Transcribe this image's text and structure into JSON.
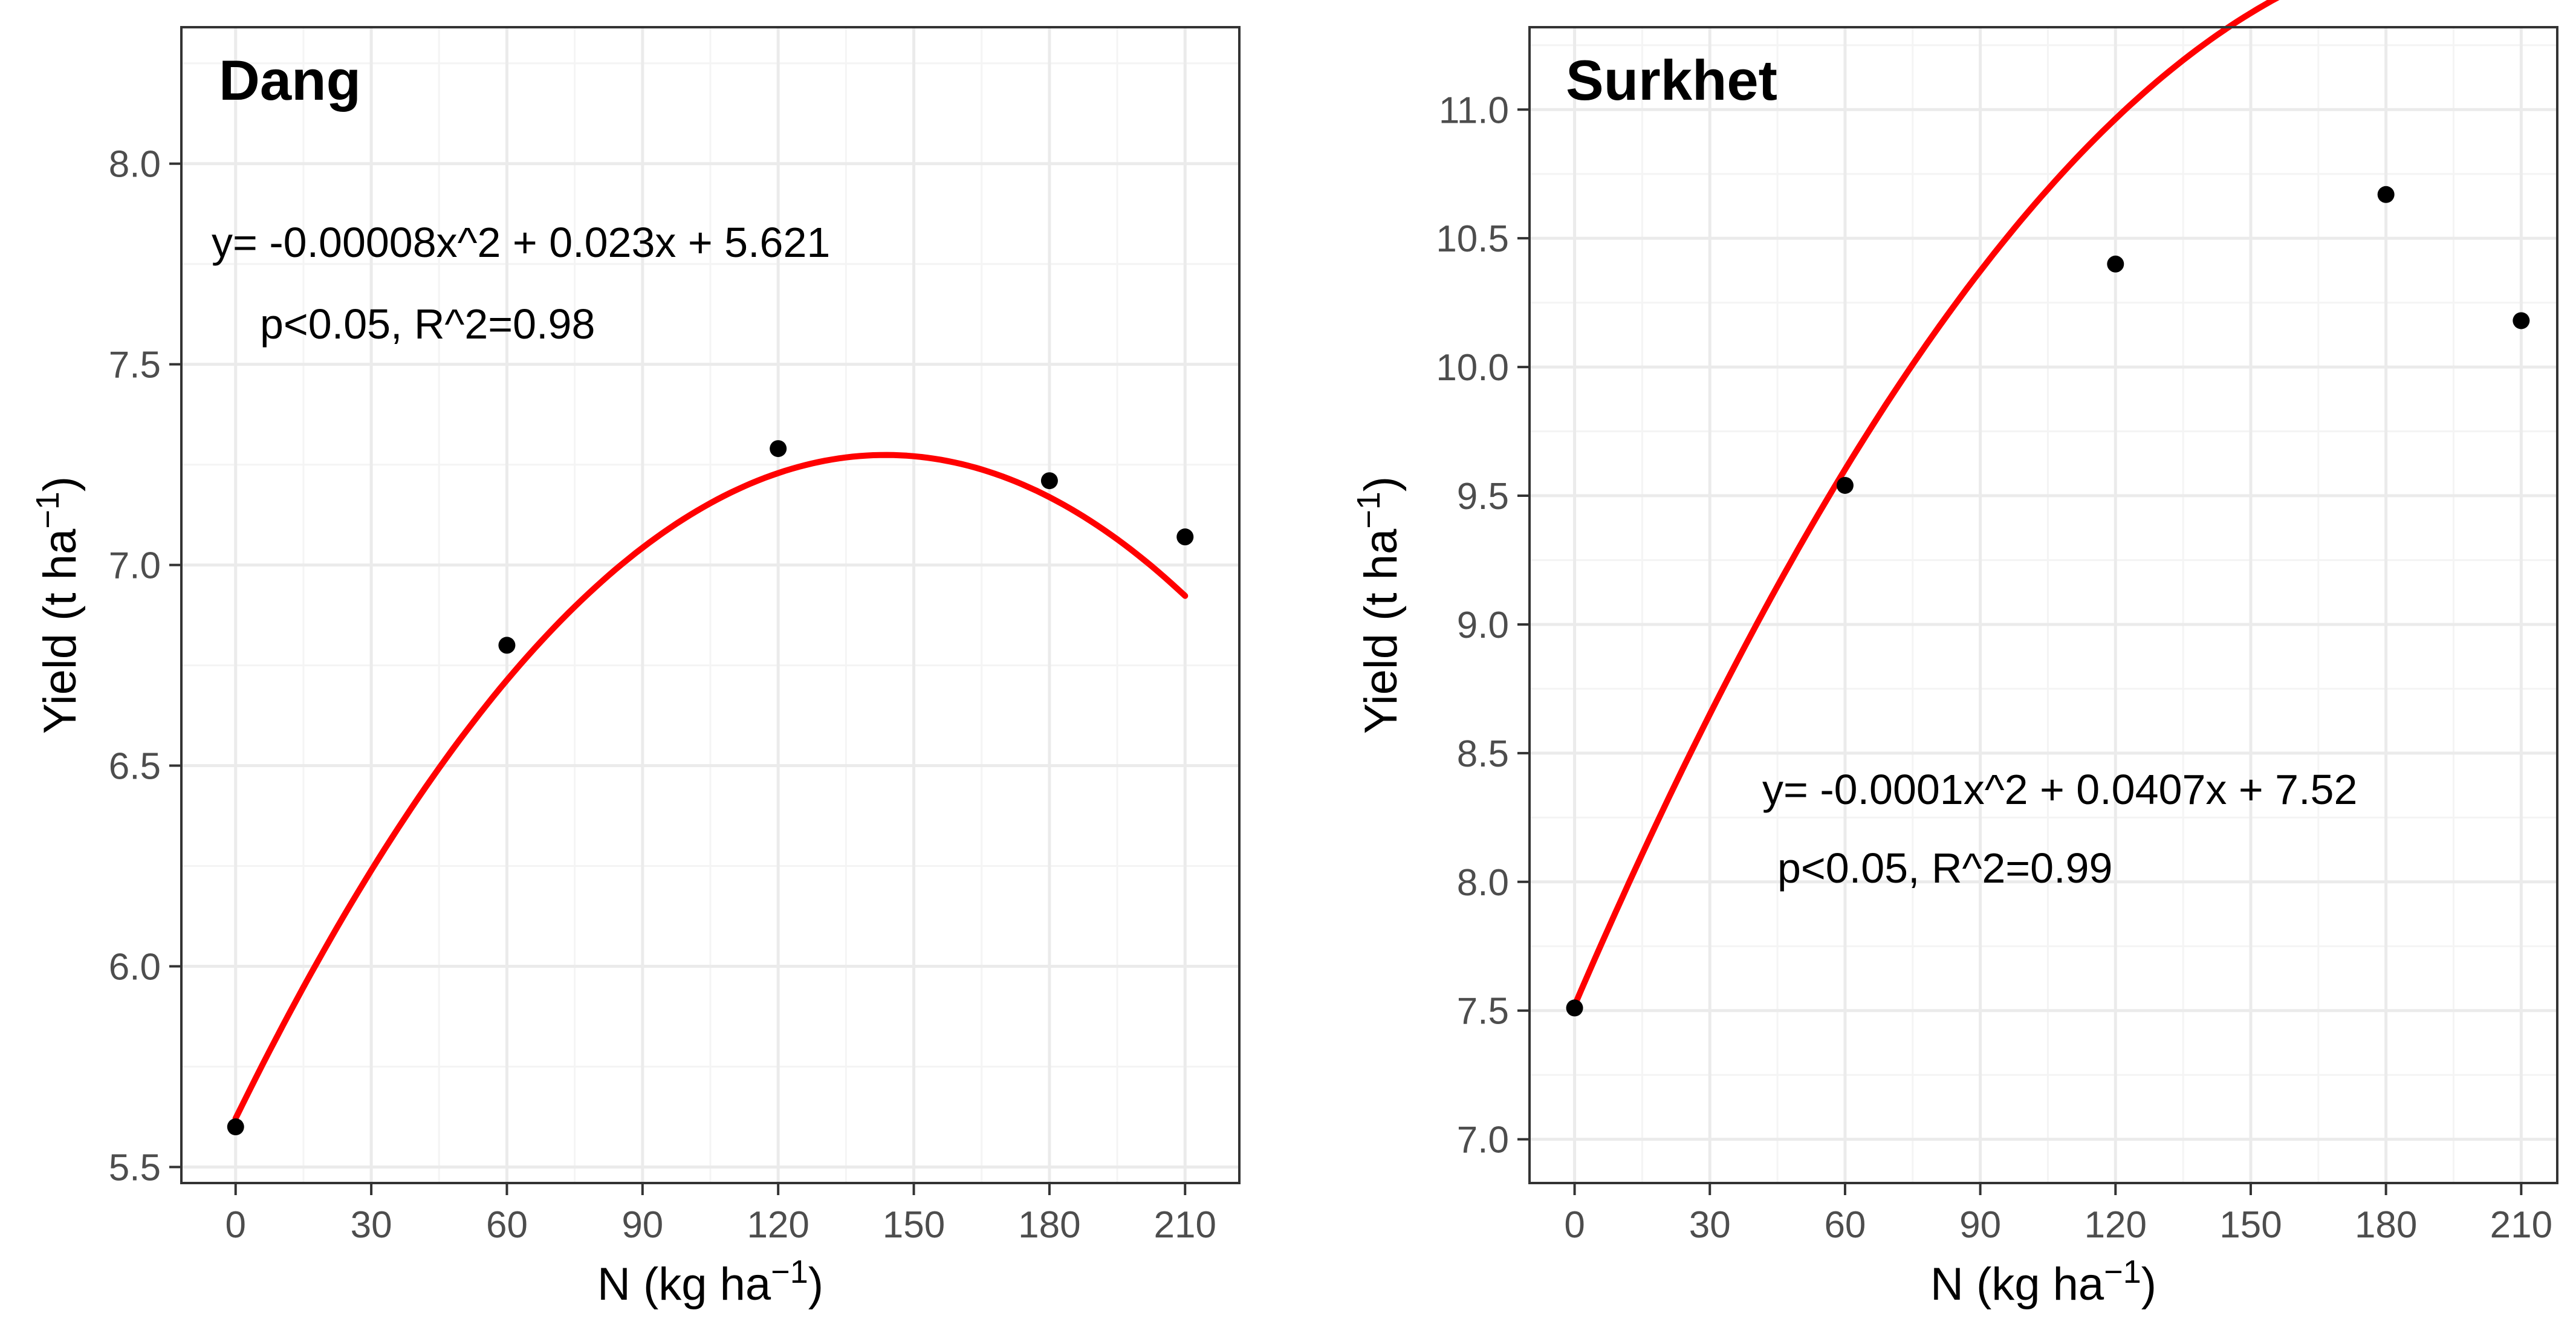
{
  "colors": {
    "fit_line": "#ff0000",
    "points": "#000000",
    "grid_major": "#ebebeb",
    "grid_minor": "#f4f4f4",
    "panel_border": "#333333",
    "tick_text": "#4d4d4d",
    "axis_title": "#000000"
  },
  "chart_data": [
    {
      "type": "scatter",
      "title": "Dang",
      "xlabel": "N (kg ha",
      "xlabel_sup": "−1",
      "xlabel_end": ")",
      "ylabel": "Yield (t ha",
      "ylabel_sup": "−1",
      "ylabel_end": ")",
      "x": [
        0,
        60,
        120,
        180,
        210
      ],
      "y": [
        5.6,
        6.8,
        7.29,
        7.21,
        7.07
      ],
      "xlim": [
        -12,
        222
      ],
      "ylim": [
        5.46,
        8.34
      ],
      "xticks": [
        0,
        30,
        60,
        90,
        120,
        150,
        180,
        210
      ],
      "xtick_labels": [
        "0",
        "30",
        "60",
        "90",
        "120",
        "150",
        "180",
        "210"
      ],
      "yticks": [
        5.5,
        6.0,
        6.5,
        7.0,
        7.5,
        8.0
      ],
      "ytick_labels": [
        "5.5",
        "6.0",
        "6.5",
        "7.0",
        "7.5",
        "8.0"
      ],
      "fit": {
        "a": -8e-05,
        "b": 0.023,
        "c": 5.621
      },
      "fit_range": [
        0,
        210
      ],
      "equation": "y= -0.00008x^2 + 0.023x + 5.621",
      "stats": "p<0.05, R^2=0.98",
      "grid": true
    },
    {
      "type": "scatter",
      "title": "Surkhet",
      "xlabel": "N (kg ha",
      "xlabel_sup": "−1",
      "xlabel_end": ")",
      "ylabel": "Yield (t ha",
      "ylabel_sup": "−1",
      "ylabel_end": ")",
      "x": [
        0,
        60,
        120,
        180,
        210
      ],
      "y": [
        7.51,
        9.54,
        10.4,
        10.67,
        10.18
      ],
      "xlim": [
        -10,
        218
      ],
      "ylim": [
        6.83,
        11.32
      ],
      "xticks": [
        0,
        30,
        60,
        90,
        120,
        150,
        180,
        210
      ],
      "xtick_labels": [
        "0",
        "30",
        "60",
        "90",
        "120",
        "150",
        "180",
        "210"
      ],
      "yticks": [
        7.0,
        7.5,
        8.0,
        8.5,
        9.0,
        9.5,
        10.0,
        10.5,
        11.0
      ],
      "ytick_labels": [
        "7.0",
        "7.5",
        "8.0",
        "8.5",
        "9.0",
        "9.5",
        "10.0",
        "10.5",
        "11.0"
      ],
      "fit": {
        "a": -0.0001,
        "b": 0.0407,
        "c": 7.52
      },
      "fit_range": [
        0,
        210
      ],
      "equation": "y= -0.0001x^2 + 0.0407x + 7.52",
      "stats": "p<0.05, R^2=0.99",
      "grid": true
    }
  ]
}
